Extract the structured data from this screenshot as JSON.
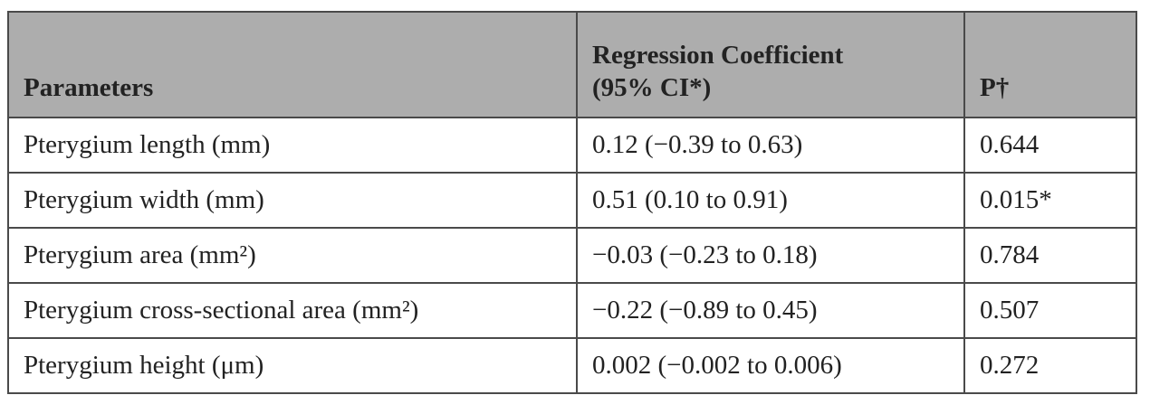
{
  "table": {
    "header": [
      [
        "Parameters"
      ],
      [
        "Regression Coefficient",
        "(95% CI*)"
      ],
      [
        "P†"
      ]
    ],
    "rows": [
      [
        "Pterygium length (mm)",
        "0.12 (−0.39 to 0.63)",
        "0.644"
      ],
      [
        "Pterygium width (mm)",
        "0.51 (0.10 to 0.91)",
        "0.015*"
      ],
      [
        "Pterygium area (mm²)",
        "−0.03 (−0.23 to 0.18)",
        "0.784"
      ],
      [
        "Pterygium cross-sectional area (mm²)",
        "−0.22 (−0.89 to 0.45)",
        "0.507"
      ],
      [
        "Pterygium height (μm)",
        "0.002 (−0.002 to 0.006)",
        "0.272"
      ]
    ]
  }
}
